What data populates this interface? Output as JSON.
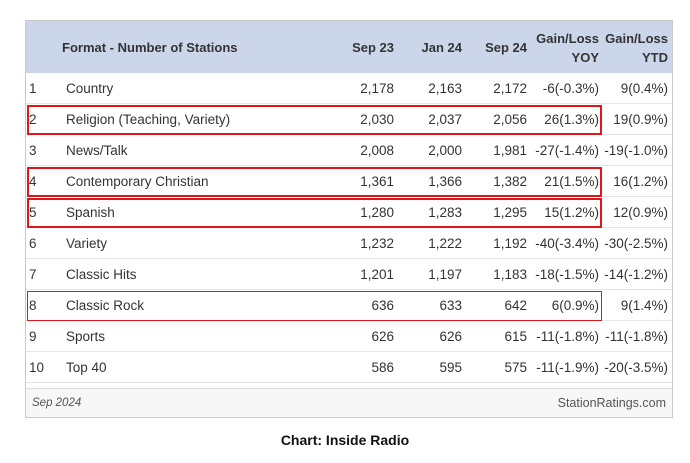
{
  "chart_data": {
    "type": "table",
    "columns": [
      "",
      "Format - Number of Stations",
      "Sep 23",
      "Jan 24",
      "Sep 24",
      "Gain/Loss YOY",
      "Gain/Loss YTD"
    ],
    "header": {
      "format": "Format - Number of Stations",
      "sep23": "Sep 23",
      "jan24": "Jan 24",
      "sep24": "Sep 24",
      "yoy_line1": "Gain/Loss",
      "yoy_line2": "YOY",
      "ytd_line1": "Gain/Loss",
      "ytd_line2": "YTD"
    },
    "rows": [
      {
        "rank": "1",
        "format": "Country",
        "sep23": "2,178",
        "jan24": "2,163",
        "sep24": "2,172",
        "yoy": "-6(-0.3%)",
        "ytd": "9(0.4%)",
        "highlight": "none"
      },
      {
        "rank": "2",
        "format": "Religion (Teaching, Variety)",
        "sep23": "2,030",
        "jan24": "2,037",
        "sep24": "2,056",
        "yoy": "26(1.3%)",
        "ytd": "19(0.9%)",
        "highlight": "bold"
      },
      {
        "rank": "3",
        "format": "News/Talk",
        "sep23": "2,008",
        "jan24": "2,000",
        "sep24": "1,981",
        "yoy": "-27(-1.4%)",
        "ytd": "-19(-1.0%)",
        "highlight": "none"
      },
      {
        "rank": "4",
        "format": "Contemporary Christian",
        "sep23": "1,361",
        "jan24": "1,366",
        "sep24": "1,382",
        "yoy": "21(1.5%)",
        "ytd": "16(1.2%)",
        "highlight": "bold"
      },
      {
        "rank": "5",
        "format": "Spanish",
        "sep23": "1,280",
        "jan24": "1,283",
        "sep24": "1,295",
        "yoy": "15(1.2%)",
        "ytd": "12(0.9%)",
        "highlight": "bold"
      },
      {
        "rank": "6",
        "format": "Variety",
        "sep23": "1,232",
        "jan24": "1,222",
        "sep24": "1,192",
        "yoy": "-40(-3.4%)",
        "ytd": "-30(-2.5%)",
        "highlight": "none"
      },
      {
        "rank": "7",
        "format": "Classic Hits",
        "sep23": "1,201",
        "jan24": "1,197",
        "sep24": "1,183",
        "yoy": "-18(-1.5%)",
        "ytd": "-14(-1.2%)",
        "highlight": "none"
      },
      {
        "rank": "8",
        "format": "Classic Rock",
        "sep23": "636",
        "jan24": "633",
        "sep24": "642",
        "yoy": "6(0.9%)",
        "ytd": "9(1.4%)",
        "highlight": "thin"
      },
      {
        "rank": "9",
        "format": "Sports",
        "sep23": "626",
        "jan24": "626",
        "sep24": "615",
        "yoy": "-11(-1.8%)",
        "ytd": "-11(-1.8%)",
        "highlight": "none"
      },
      {
        "rank": "10",
        "format": "Top 40",
        "sep23": "586",
        "jan24": "595",
        "sep24": "575",
        "yoy": "-11(-1.9%)",
        "ytd": "-20(-3.5%)",
        "highlight": "none"
      }
    ],
    "footer_left": "Sep 2024",
    "footer_right": "StationRatings.com",
    "highlight_color": "#e0161b",
    "header_color": "#ccd6eb"
  },
  "caption": "Chart: Inside Radio"
}
